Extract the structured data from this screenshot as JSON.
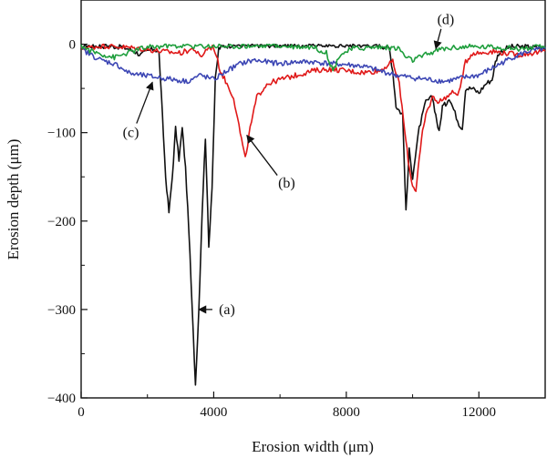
{
  "chart_data": {
    "type": "line",
    "title": "",
    "xlabel": "Erosion width (μm)",
    "ylabel": "Erosion depth (μm)",
    "xlim": [
      0,
      14000
    ],
    "ylim": [
      -400,
      50
    ],
    "xticks": [
      0,
      4000,
      8000,
      12000
    ],
    "xtick_labels": [
      "0",
      "4000",
      "8000",
      "12000"
    ],
    "yticks": [
      0,
      -100,
      -200,
      -300,
      -400
    ],
    "ytick_labels": [
      "0",
      "−100",
      "−200",
      "−300",
      "−400"
    ],
    "grid": false,
    "legend": "none",
    "series": [
      {
        "id": "a",
        "color": "#111111",
        "x": [
          0,
          400,
          800,
          1200,
          1400,
          1600,
          1800,
          2000,
          2200,
          2350,
          2450,
          2550,
          2650,
          2750,
          2850,
          2950,
          3050,
          3150,
          3250,
          3350,
          3450,
          3550,
          3650,
          3750,
          3850,
          3950,
          4050,
          4150,
          4300,
          4600,
          5000,
          6000,
          7000,
          8000,
          9000,
          9300,
          9400,
          9500,
          9600,
          9700,
          9800,
          9900,
          10000,
          10200,
          10400,
          10600,
          10700,
          10800,
          10900,
          11000,
          11100,
          11200,
          11400,
          11500,
          11600,
          11800,
          12000,
          12200,
          12400,
          12500,
          12600,
          12800,
          13000,
          13400,
          13800,
          14000
        ],
        "y": [
          -2,
          -2,
          -2,
          -3,
          -5,
          -8,
          -12,
          -8,
          -5,
          -10,
          -80,
          -150,
          -190,
          -150,
          -95,
          -130,
          -95,
          -140,
          -210,
          -300,
          -385,
          -300,
          -190,
          -105,
          -230,
          -160,
          -40,
          -5,
          -2,
          -1,
          -1,
          -1,
          -1,
          -1,
          -1,
          -5,
          -30,
          -70,
          -75,
          -80,
          -190,
          -120,
          -150,
          -95,
          -65,
          -60,
          -80,
          -100,
          -70,
          -68,
          -60,
          -70,
          -90,
          -95,
          -50,
          -50,
          -55,
          -45,
          -40,
          -20,
          -10,
          -5,
          -3,
          -3,
          -4,
          -5
        ]
      },
      {
        "id": "b",
        "color": "#e01919",
        "x": [
          0,
          600,
          1200,
          1800,
          2400,
          3000,
          3400,
          3600,
          3800,
          4000,
          4200,
          4400,
          4600,
          4800,
          4950,
          5100,
          5300,
          5600,
          6000,
          6500,
          7000,
          7500,
          8000,
          8500,
          9000,
          9400,
          9600,
          9800,
          9900,
          10000,
          10100,
          10200,
          10300,
          10400,
          10600,
          10800,
          11000,
          11200,
          11400,
          11600,
          11800,
          12000,
          12400,
          12800,
          13200,
          13600,
          14000
        ],
        "y": [
          -5,
          -2,
          -3,
          -5,
          -8,
          -10,
          -5,
          -15,
          -5,
          -3,
          -30,
          -45,
          -60,
          -100,
          -130,
          -95,
          -60,
          -45,
          -40,
          -35,
          -30,
          -28,
          -30,
          -32,
          -30,
          -20,
          -45,
          -110,
          -140,
          -160,
          -165,
          -130,
          -100,
          -80,
          -60,
          -65,
          -60,
          -55,
          -55,
          -20,
          -10,
          -10,
          -8,
          -10,
          -12,
          -10,
          -8
        ]
      },
      {
        "id": "c",
        "color": "#3c46b4",
        "x": [
          0,
          200,
          400,
          600,
          800,
          1000,
          1200,
          1400,
          1600,
          2000,
          2400,
          2800,
          3200,
          3600,
          4000,
          4400,
          4800,
          5200,
          5600,
          6000,
          6500,
          7000,
          7500,
          8000,
          8500,
          9000,
          9500,
          10000,
          10500,
          11000,
          11500,
          12000,
          12500,
          13000,
          13500,
          14000
        ],
        "y": [
          -5,
          -10,
          -14,
          -18,
          -20,
          -22,
          -26,
          -32,
          -34,
          -36,
          -38,
          -40,
          -42,
          -35,
          -40,
          -30,
          -22,
          -18,
          -20,
          -22,
          -20,
          -20,
          -22,
          -23,
          -25,
          -30,
          -35,
          -38,
          -40,
          -42,
          -38,
          -35,
          -25,
          -15,
          -8,
          -5
        ]
      },
      {
        "id": "d",
        "color": "#1e9e3c",
        "x": [
          0,
          300,
          700,
          1000,
          1400,
          1800,
          2200,
          2600,
          3000,
          4000,
          5000,
          6000,
          7000,
          7400,
          7600,
          7800,
          8200,
          9000,
          9600,
          9800,
          10000,
          10400,
          10800,
          11200,
          11600,
          12000,
          12400,
          12800,
          13200,
          13600,
          14000
        ],
        "y": [
          -2,
          -8,
          -12,
          -15,
          -10,
          -5,
          -3,
          -2,
          -2,
          -2,
          -2,
          -2,
          -3,
          -10,
          -30,
          -12,
          -5,
          -3,
          -5,
          -15,
          -18,
          -12,
          -6,
          -4,
          -3,
          -3,
          -3,
          -4,
          -5,
          -4,
          -3
        ]
      }
    ],
    "annotations": [
      {
        "label": "(a)",
        "text_x": 4400,
        "text_y": -300,
        "arrow_to_x": 3550,
        "arrow_to_y": -300
      },
      {
        "label": "(b)",
        "text_x": 6200,
        "text_y": -157,
        "arrow_to_x": 5000,
        "arrow_to_y": -103
      },
      {
        "label": "(c)",
        "text_x": 1500,
        "text_y": -100,
        "arrow_to_x": 2150,
        "arrow_to_y": -43
      },
      {
        "label": "(d)",
        "text_x": 11000,
        "text_y": 28,
        "arrow_to_x": 10700,
        "arrow_to_y": -5
      }
    ]
  }
}
